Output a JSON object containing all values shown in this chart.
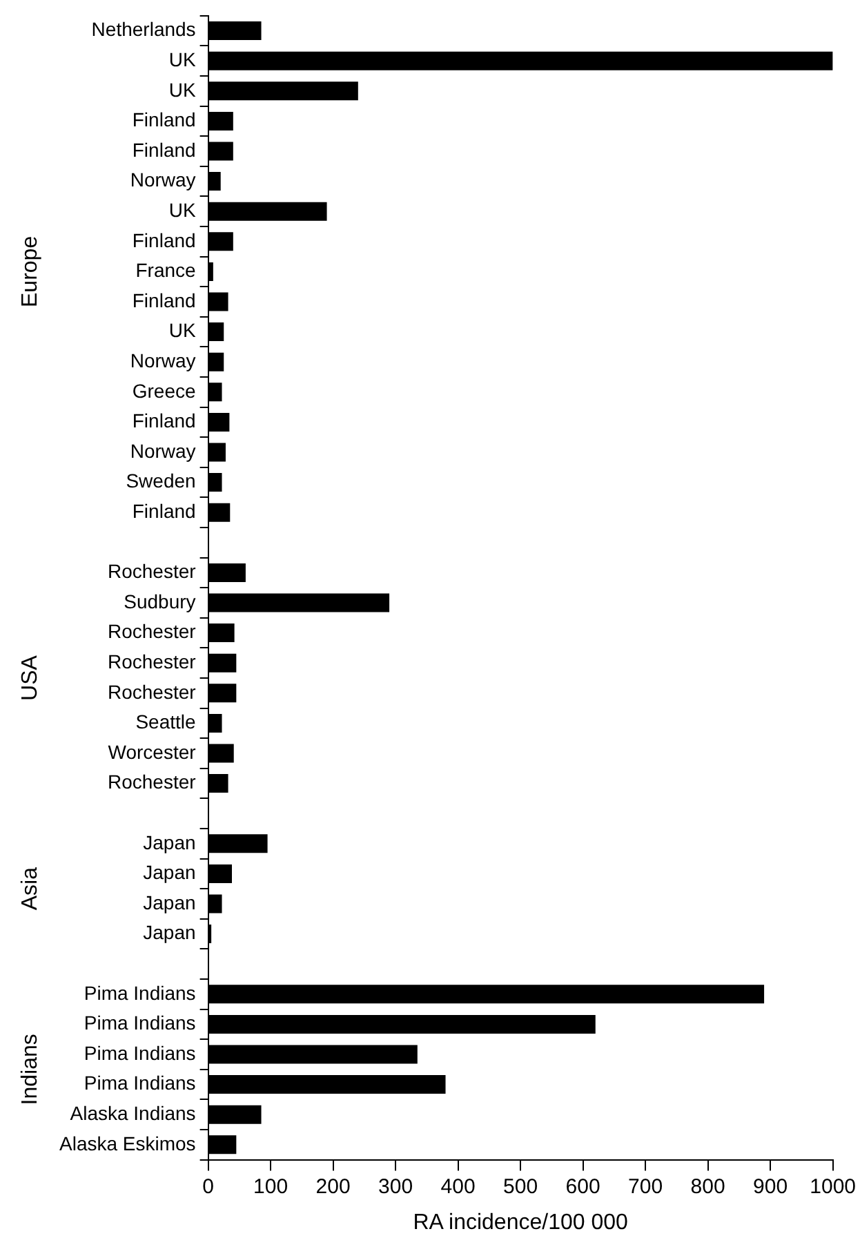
{
  "chart_data": {
    "type": "bar",
    "orientation": "horizontal",
    "categories": [
      "Netherlands",
      "UK",
      "UK",
      "Finland",
      "Finland",
      "Norway",
      "UK",
      "Finland",
      "France",
      "Finland",
      "UK",
      "Norway",
      "Greece",
      "Finland",
      "Norway",
      "Sweden",
      "Finland",
      null,
      "Rochester",
      "Sudbury",
      "Rochester",
      "Rochester",
      "Rochester",
      "Seattle",
      "Worcester",
      "Rochester",
      null,
      "Japan",
      "Japan",
      "Japan",
      "Japan",
      null,
      "Pima Indians",
      "Pima Indians",
      "Pima Indians",
      "Pima Indians",
      "Alaska Indians",
      "Alaska Eskimos"
    ],
    "values": [
      85,
      1000,
      240,
      40,
      40,
      20,
      190,
      40,
      8,
      32,
      25,
      25,
      22,
      34,
      28,
      22,
      35,
      null,
      60,
      290,
      42,
      45,
      45,
      22,
      41,
      32,
      null,
      95,
      38,
      22,
      5,
      null,
      890,
      620,
      335,
      380,
      85,
      45
    ],
    "color": "#000000",
    "xlabel": "RA incidence/100 000",
    "xlim": [
      0,
      1000
    ],
    "xticks": [
      0,
      100,
      200,
      300,
      400,
      500,
      600,
      700,
      800,
      900,
      1000
    ],
    "annotations": [
      "Europe",
      "USA",
      "Asia",
      "Indians"
    ],
    "grid": false,
    "legend": false
  }
}
